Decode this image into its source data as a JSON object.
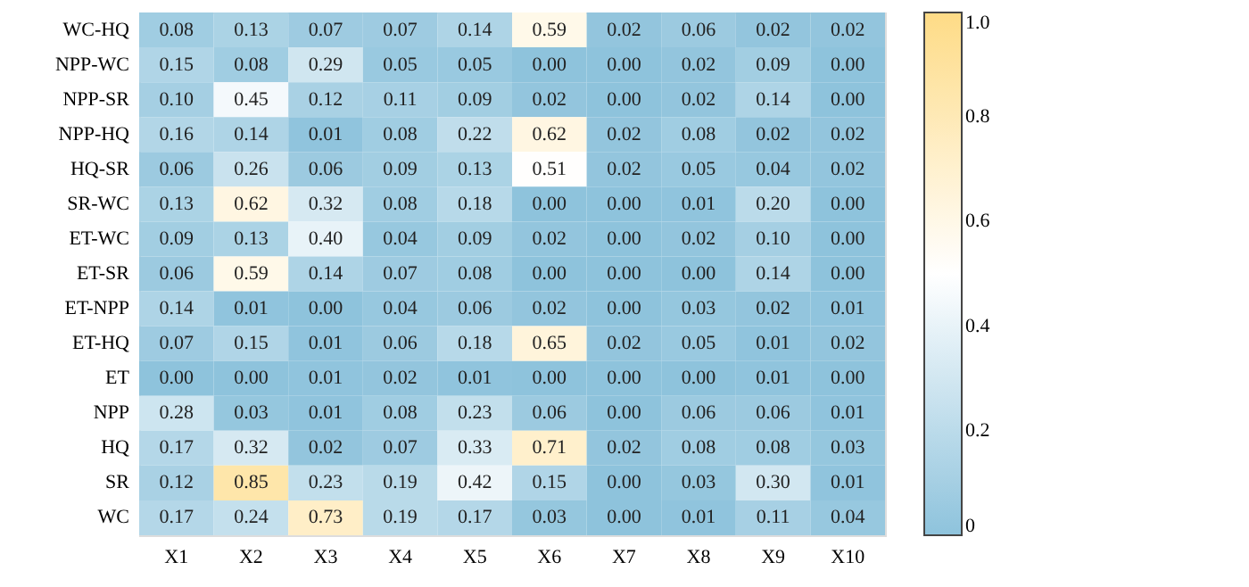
{
  "chart_data": {
    "type": "heatmap",
    "categories": [
      "X1",
      "X2",
      "X3",
      "X4",
      "X5",
      "X6",
      "X7",
      "X8",
      "X9",
      "X10"
    ],
    "y_categories": [
      "WC-HQ",
      "NPP-WC",
      "NPP-SR",
      "NPP-HQ",
      "HQ-SR",
      "SR-WC",
      "ET-WC",
      "ET-SR",
      "ET-NPP",
      "ET-HQ",
      "ET",
      "NPP",
      "HQ",
      "SR",
      "WC"
    ],
    "cells": [
      [
        0.08,
        0.13,
        0.07,
        0.07,
        0.14,
        0.59,
        0.02,
        0.06,
        0.02,
        0.02
      ],
      [
        0.15,
        0.08,
        0.29,
        0.05,
        0.05,
        0.0,
        0.0,
        0.02,
        0.09,
        0.0
      ],
      [
        0.1,
        0.45,
        0.12,
        0.11,
        0.09,
        0.02,
        0.0,
        0.02,
        0.14,
        0.0
      ],
      [
        0.16,
        0.14,
        0.01,
        0.08,
        0.22,
        0.62,
        0.02,
        0.08,
        0.02,
        0.02
      ],
      [
        0.06,
        0.26,
        0.06,
        0.09,
        0.13,
        0.51,
        0.02,
        0.05,
        0.04,
        0.02
      ],
      [
        0.13,
        0.62,
        0.32,
        0.08,
        0.18,
        0.0,
        0.0,
        0.01,
        0.2,
        0.0
      ],
      [
        0.09,
        0.13,
        0.4,
        0.04,
        0.09,
        0.02,
        0.0,
        0.02,
        0.1,
        0.0
      ],
      [
        0.06,
        0.59,
        0.14,
        0.07,
        0.08,
        0.0,
        0.0,
        0.0,
        0.14,
        0.0
      ],
      [
        0.14,
        0.01,
        0.0,
        0.04,
        0.06,
        0.02,
        0.0,
        0.03,
        0.02,
        0.01
      ],
      [
        0.07,
        0.15,
        0.01,
        0.06,
        0.18,
        0.65,
        0.02,
        0.05,
        0.01,
        0.02
      ],
      [
        0.0,
        0.0,
        0.01,
        0.02,
        0.01,
        0.0,
        0.0,
        0.0,
        0.01,
        0.0
      ],
      [
        0.28,
        0.03,
        0.01,
        0.08,
        0.23,
        0.06,
        0.0,
        0.06,
        0.06,
        0.01
      ],
      [
        0.17,
        0.32,
        0.02,
        0.07,
        0.33,
        0.71,
        0.02,
        0.08,
        0.08,
        0.03
      ],
      [
        0.12,
        0.85,
        0.23,
        0.19,
        0.42,
        0.15,
        0.0,
        0.03,
        0.3,
        0.01
      ],
      [
        0.17,
        0.24,
        0.73,
        0.19,
        0.17,
        0.03,
        0.0,
        0.01,
        0.11,
        0.04
      ]
    ],
    "clim": [
      0,
      1
    ],
    "cticks": [
      0,
      0.2,
      0.4,
      0.6,
      0.8,
      {
        "value": 1,
        "label": "1.0"
      }
    ],
    "cell_labels": [
      [
        "0.08",
        "0.13",
        "0.07",
        "0.07",
        "0.14",
        "0.59",
        "0.02",
        "0.06",
        "0.02",
        "0.02"
      ],
      [
        "0.15",
        "0.08",
        "0.29",
        "0.05",
        "0.05",
        "0.00",
        "0.00",
        "0.02",
        "0.09",
        "0.00"
      ],
      [
        "0.10",
        "0.45",
        "0.12",
        "0.11",
        "0.09",
        "0.02",
        "0.00",
        "0.02",
        "0.14",
        "0.00"
      ],
      [
        "0.16",
        "0.14",
        "0.01",
        "0.08",
        "0.22",
        "0.62",
        "0.02",
        "0.08",
        "0.02",
        "0.02"
      ],
      [
        "0.06",
        "0.26",
        "0.06",
        "0.09",
        "0.13",
        "0.51",
        "0.02",
        "0.05",
        "0.04",
        "0.02"
      ],
      [
        "0.13",
        "0.62",
        "0.32",
        "0.08",
        "0.18",
        "0.00",
        "0.00",
        "0.01",
        "0.20",
        "0.00"
      ],
      [
        "0.09",
        "0.13",
        "0.40",
        "0.04",
        "0.09",
        "0.02",
        "0.00",
        "0.02",
        "0.10",
        "0.00"
      ],
      [
        "0.06",
        "0.59",
        "0.14",
        "0.07",
        "0.08",
        "0.00",
        "0.00",
        "0.00",
        "0.14",
        "0.00"
      ],
      [
        "0.14",
        "0.01",
        "0.00",
        "0.04",
        "0.06",
        "0.02",
        "0.00",
        "0.03",
        "0.02",
        "0.01"
      ],
      [
        "0.07",
        "0.15",
        "0.01",
        "0.06",
        "0.18",
        "0.65",
        "0.02",
        "0.05",
        "0.01",
        "0.02"
      ],
      [
        "0.00",
        "0.00",
        "0.01",
        "0.02",
        "0.01",
        "0.00",
        "0.00",
        "0.00",
        "0.01",
        "0.00"
      ],
      [
        "0.28",
        "0.03",
        "0.01",
        "0.08",
        "0.23",
        "0.06",
        "0.00",
        "0.06",
        "0.06",
        "0.01"
      ],
      [
        "0.17",
        "0.32",
        "0.02",
        "0.07",
        "0.33",
        "0.71",
        "0.02",
        "0.08",
        "0.08",
        "0.03"
      ],
      [
        "0.12",
        "0.85",
        "0.23",
        "0.19",
        "0.42",
        "0.15",
        "0.00",
        "0.03",
        "0.30",
        "0.01"
      ],
      [
        "0.17",
        "0.24",
        "0.73",
        "0.19",
        "0.17",
        "0.03",
        "0.00",
        "0.01",
        "0.11",
        "0.04"
      ]
    ]
  }
}
